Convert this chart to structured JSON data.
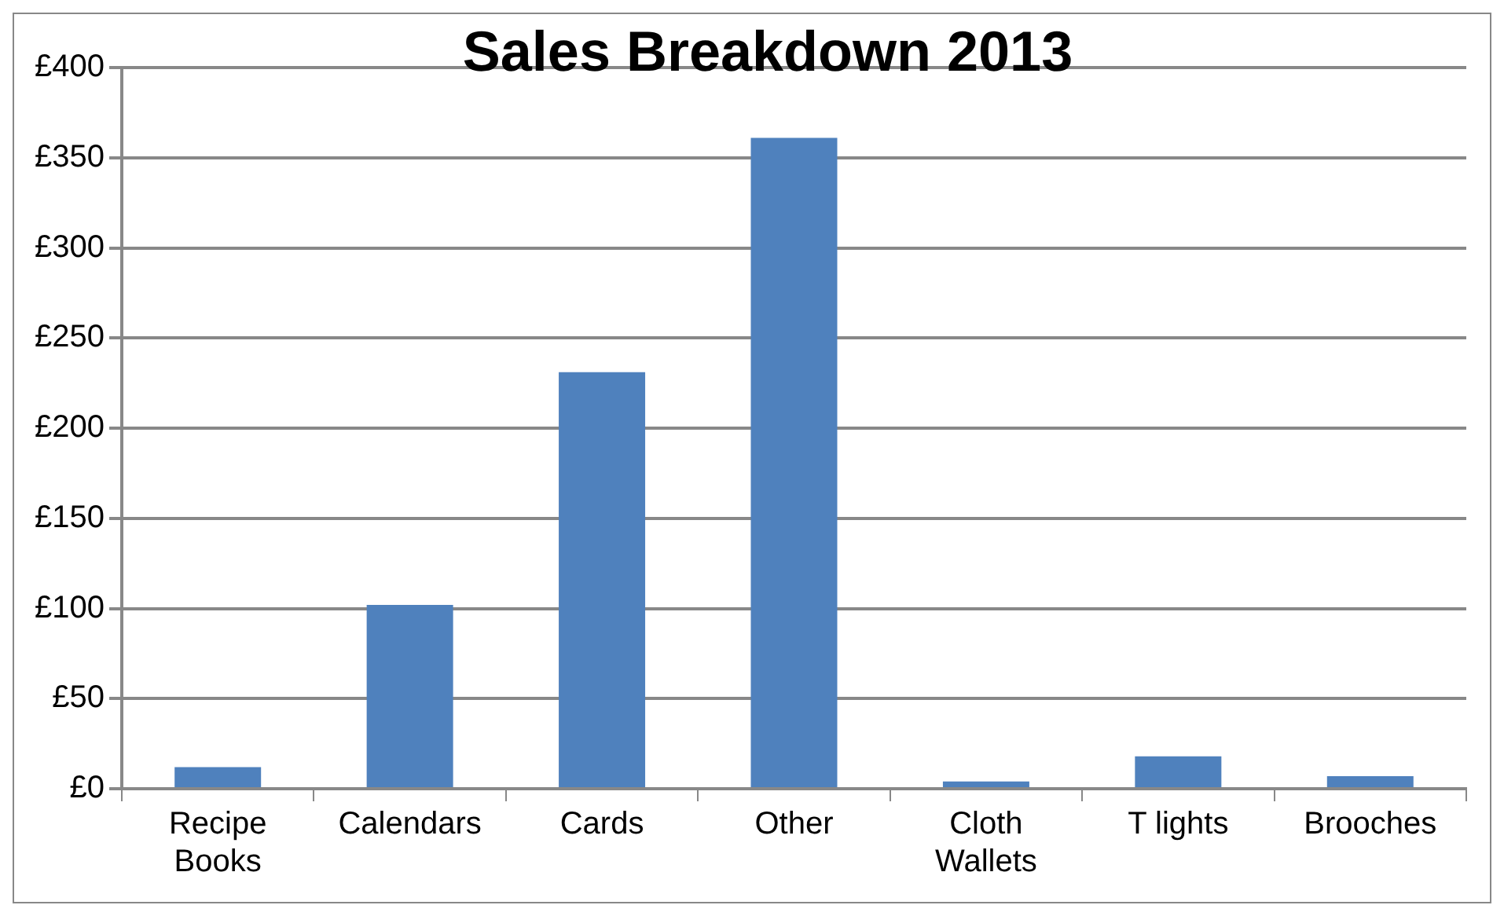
{
  "chart_data": {
    "type": "bar",
    "title": "Sales Breakdown 2013",
    "categories": [
      "Recipe Books",
      "Calendars",
      "Cards",
      "Other",
      "Cloth Wallets",
      "T lights",
      "Brooches"
    ],
    "values": [
      12,
      102,
      231,
      361,
      4,
      18,
      7
    ],
    "color": "#4f81bd",
    "ylim": [
      0,
      400
    ],
    "yticks": [
      {
        "value": 0,
        "label": "£0"
      },
      {
        "value": 50,
        "label": "£50"
      },
      {
        "value": 100,
        "label": "£100"
      },
      {
        "value": 150,
        "label": "£150"
      },
      {
        "value": 200,
        "label": "£200"
      },
      {
        "value": 250,
        "label": "£250"
      },
      {
        "value": 300,
        "label": "£300"
      },
      {
        "value": 350,
        "label": "£350"
      },
      {
        "value": 400,
        "label": "£400"
      }
    ],
    "grid": "y",
    "legend": false
  }
}
